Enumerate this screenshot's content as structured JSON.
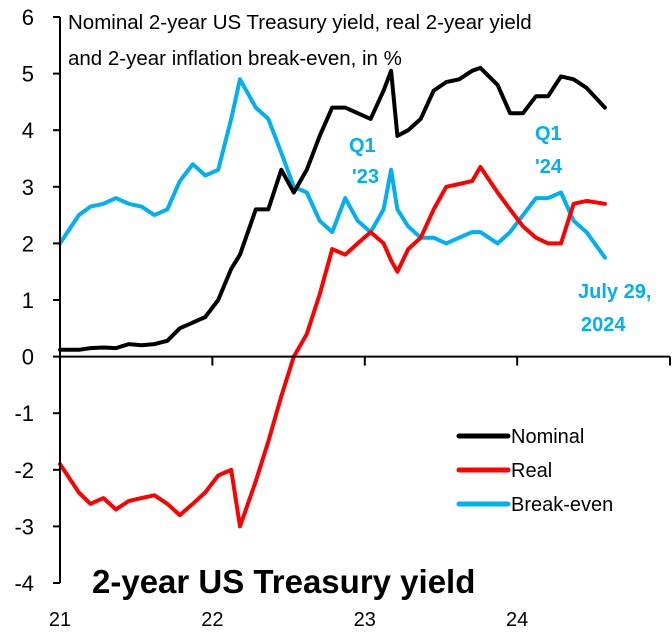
{
  "chart_data": {
    "type": "line",
    "title": "2-year US Treasury yield",
    "subtitle_lines": [
      "Nominal 2-year US Treasury yield, real 2-year yield",
      "and 2-year inflation break-even, in %"
    ],
    "xlabel": "",
    "ylabel": "",
    "x_ticks": [
      "21",
      "22",
      "23",
      "24"
    ],
    "y_ticks": [
      "6",
      "5",
      "4",
      "3",
      "2",
      "1",
      "0",
      "-1",
      "-2",
      "-3",
      "-4"
    ],
    "ylim": [
      -4,
      6
    ],
    "xlim": [
      "2021-01-01",
      "2025-01-01"
    ],
    "grid": false,
    "legend_position": "lower-right",
    "annotations": [
      {
        "lines": [
          "Q1",
          "'23"
        ],
        "color": "#00b0f0"
      },
      {
        "lines": [
          "Q1",
          "'24"
        ],
        "color": "#00b0f0"
      },
      {
        "lines": [
          "July 29,",
          "2024"
        ],
        "color": "#00b0f0"
      }
    ],
    "x": [
      "2021-01-01",
      "2021-02-15",
      "2021-03-15",
      "2021-04-15",
      "2021-05-15",
      "2021-06-15",
      "2021-07-15",
      "2021-08-15",
      "2021-09-15",
      "2021-10-15",
      "2021-11-15",
      "2021-12-15",
      "2022-01-15",
      "2022-02-15",
      "2022-03-08",
      "2022-04-15",
      "2022-05-15",
      "2022-06-15",
      "2022-07-15",
      "2022-08-15",
      "2022-09-15",
      "2022-10-15",
      "2022-11-15",
      "2022-12-15",
      "2023-01-15",
      "2023-02-15",
      "2023-03-05",
      "2023-03-20",
      "2023-04-15",
      "2023-05-15",
      "2023-06-15",
      "2023-07-15",
      "2023-08-15",
      "2023-09-15",
      "2023-10-05",
      "2023-11-15",
      "2023-12-15",
      "2024-01-15",
      "2024-02-15",
      "2024-03-15",
      "2024-04-15",
      "2024-05-15",
      "2024-06-15",
      "2024-07-29"
    ],
    "series": [
      {
        "name": "Nominal",
        "color": "#000000",
        "values": [
          0.12,
          0.12,
          0.15,
          0.16,
          0.15,
          0.22,
          0.2,
          0.22,
          0.28,
          0.5,
          0.6,
          0.7,
          1.0,
          1.55,
          1.8,
          2.6,
          2.6,
          3.3,
          2.9,
          3.3,
          3.9,
          4.4,
          4.4,
          4.3,
          4.2,
          4.7,
          5.05,
          3.9,
          4.0,
          4.2,
          4.7,
          4.85,
          4.9,
          5.05,
          5.1,
          4.8,
          4.3,
          4.3,
          4.6,
          4.6,
          4.95,
          4.9,
          4.75,
          4.4
        ]
      },
      {
        "name": "Real",
        "color": "#ff0000",
        "values": [
          -1.9,
          -2.4,
          -2.6,
          -2.5,
          -2.7,
          -2.55,
          -2.5,
          -2.45,
          -2.6,
          -2.8,
          -2.6,
          -2.4,
          -2.1,
          -2.0,
          -3.0,
          -2.2,
          -1.5,
          -0.7,
          0.0,
          0.4,
          1.1,
          1.9,
          1.8,
          2.0,
          2.2,
          2.0,
          1.7,
          1.5,
          1.9,
          2.1,
          2.6,
          3.0,
          3.05,
          3.1,
          3.35,
          2.9,
          2.6,
          2.3,
          2.1,
          2.0,
          2.0,
          2.7,
          2.75,
          2.7
        ]
      },
      {
        "name": "Break-even",
        "color": "#00b0f0",
        "values": [
          2.0,
          2.5,
          2.65,
          2.7,
          2.8,
          2.7,
          2.65,
          2.5,
          2.6,
          3.1,
          3.4,
          3.2,
          3.3,
          4.2,
          4.9,
          4.4,
          4.2,
          3.6,
          3.0,
          2.9,
          2.4,
          2.2,
          2.8,
          2.4,
          2.2,
          2.6,
          3.3,
          2.6,
          2.3,
          2.1,
          2.1,
          2.0,
          2.1,
          2.2,
          2.2,
          2.0,
          2.2,
          2.5,
          2.8,
          2.8,
          2.9,
          2.4,
          2.2,
          1.75
        ]
      }
    ]
  }
}
